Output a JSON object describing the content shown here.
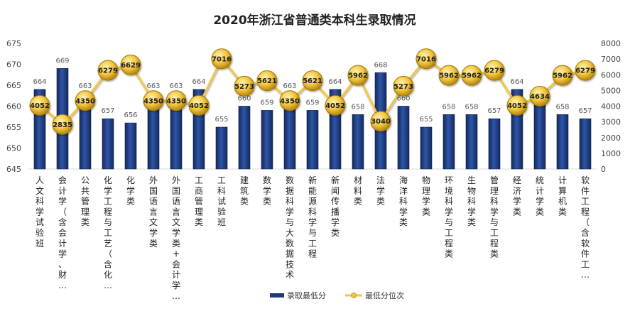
{
  "chart_data": {
    "type": "bar",
    "title": "2020年浙江省普通类本科生录取情况",
    "categories": [
      "人文科学试验班",
      "会计学（含会计学、财…",
      "公共管理类",
      "化学工程与工艺（含化…",
      "化学类",
      "外国语言文学类",
      "外国语言文学类+会计学…",
      "工商管理类",
      "工科试验班",
      "建筑类",
      "数学类",
      "数据科学与大数据技术",
      "新能源科学与工程",
      "新闻传播学类",
      "材料类",
      "法学类",
      "海洋科学类",
      "物理学类",
      "环境科学与工程类",
      "生物科学类",
      "管理科学与工程类",
      "经济学类",
      "统计学类",
      "计算机类",
      "软件工程（含软件工…"
    ],
    "series": [
      {
        "name": "录取最低分",
        "type": "bar",
        "axis": "left",
        "color": "#1f3b7a",
        "values": [
          664,
          669,
          663,
          657,
          656,
          663,
          663,
          664,
          655,
          660,
          659,
          663,
          659,
          664,
          658,
          668,
          660,
          655,
          658,
          658,
          657,
          664,
          662,
          658,
          657
        ]
      },
      {
        "name": "最低分位次",
        "type": "line",
        "axis": "right",
        "color": "#f2c744",
        "values": [
          4052,
          2835,
          4350,
          6279,
          6629,
          4350,
          4350,
          4052,
          7016,
          5273,
          5621,
          4350,
          5621,
          4052,
          5962,
          3040,
          5273,
          7016,
          5962,
          5962,
          6279,
          4052,
          4634,
          5962,
          6279
        ]
      }
    ],
    "y_left": {
      "min": 645,
      "max": 675,
      "ticks": [
        645,
        650,
        655,
        660,
        665,
        670,
        675
      ]
    },
    "y_right": {
      "min": 0,
      "max": 8000,
      "ticks": [
        0,
        1000,
        2000,
        3000,
        4000,
        5000,
        6000,
        7000,
        8000
      ]
    },
    "grid": false,
    "legend_position": "bottom"
  }
}
